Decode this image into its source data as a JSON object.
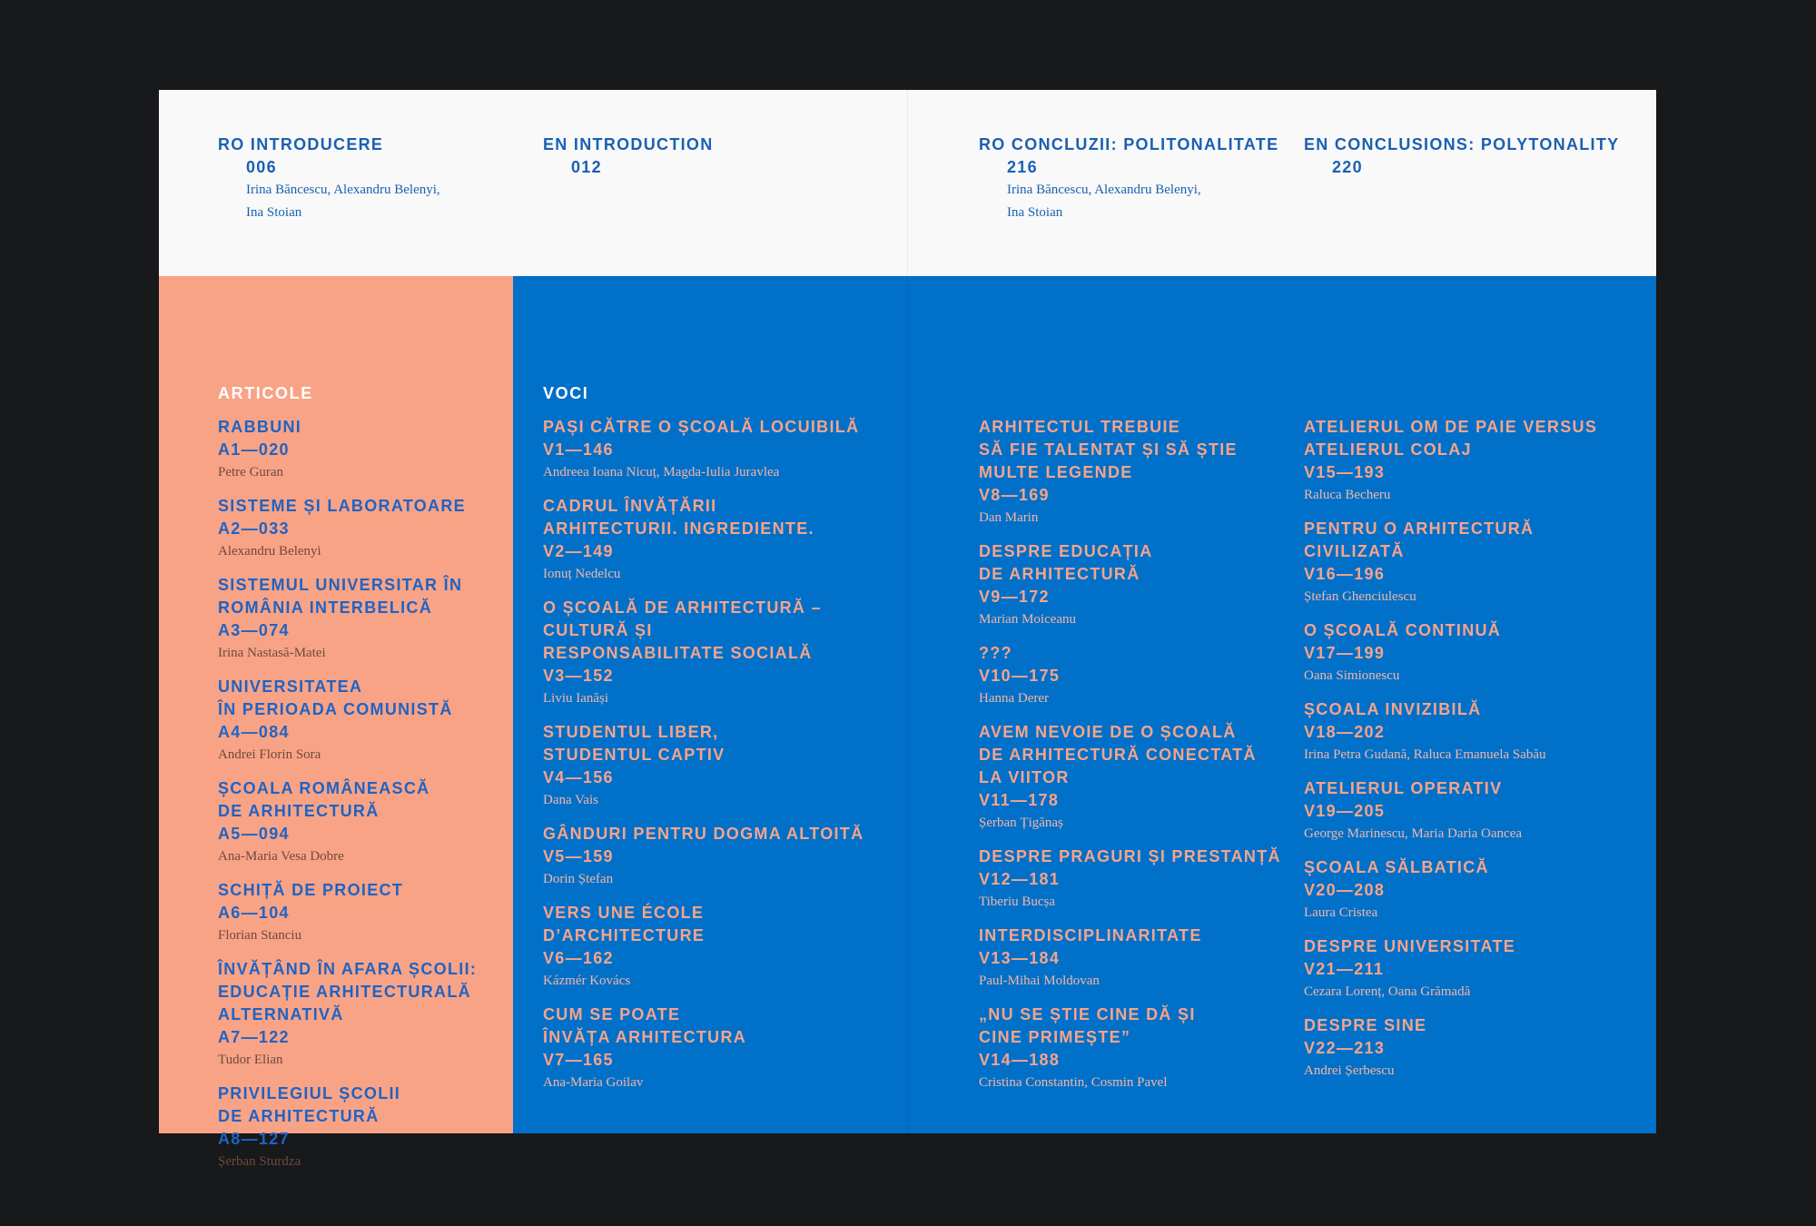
{
  "intro": [
    {
      "lang": "RO",
      "title": "INTRODUCERE",
      "page": "006",
      "authors": [
        "Irina Băncescu, Alexandru Belenyi,",
        "Ina Stoian"
      ]
    },
    {
      "lang": "EN",
      "title": "INTRODUCTION",
      "page": "012",
      "authors": []
    },
    {
      "lang": "RO",
      "title": "CONCLUZII: POLITONALITATE",
      "page": "216",
      "authors": [
        "Irina Băncescu, Alexandru Belenyi,",
        "Ina Stoian"
      ]
    },
    {
      "lang": "EN",
      "title": "CONCLUSIONS: POLYTONALITY",
      "page": "220",
      "authors": []
    }
  ],
  "articole": {
    "heading": "ARTICOLE",
    "items": [
      {
        "title": [
          "RABBUNI"
        ],
        "ref": "A1—020",
        "authors": "Petre Guran"
      },
      {
        "title": [
          "SISTEME ȘI LABORATOARE"
        ],
        "ref": "A2—033",
        "authors": "Alexandru Belenyi"
      },
      {
        "title": [
          "SISTEMUL UNIVERSITAR ÎN",
          "ROMÂNIA INTERBELICĂ"
        ],
        "ref": "A3—074",
        "authors": "Irina Nastasă-Matei"
      },
      {
        "title": [
          "UNIVERSITATEA",
          "ÎN PERIOADA COMUNISTĂ"
        ],
        "ref": "A4—084",
        "authors": "Andrei Florin Sora"
      },
      {
        "title": [
          "ȘCOALA ROMÂNEASCĂ",
          "DE ARHITECTURĂ"
        ],
        "ref": "A5—094",
        "authors": "Ana-Maria Vesa Dobre"
      },
      {
        "title": [
          "SCHIȚĂ DE PROIECT"
        ],
        "ref": "A6—104",
        "authors": "Florian Stanciu"
      },
      {
        "title": [
          "ÎNVĂȚÂND ÎN AFARA ȘCOLII:",
          "EDUCAȚIE ARHITECTURALĂ",
          "ALTERNATIVĂ"
        ],
        "ref": "A7—122",
        "authors": "Tudor Elian"
      },
      {
        "title": [
          "PRIVILEGIUL ȘCOLII",
          "DE ARHITECTURĂ"
        ],
        "ref": "A8—127",
        "authors": "Șerban Sturdza"
      }
    ]
  },
  "voci": {
    "heading": "VOCI",
    "columns": [
      [
        {
          "title": [
            "PAȘI CĂTRE O ȘCOALĂ LOCUIBILĂ"
          ],
          "ref": "V1—146",
          "authors": "Andreea Ioana Nicuț, Magda-Iulia Juravlea"
        },
        {
          "title": [
            "CADRUL ÎNVĂȚĂRII",
            "ARHITECTURII. INGREDIENTE."
          ],
          "ref": "V2—149",
          "authors": "Ionuț Nedelcu"
        },
        {
          "title": [
            "O ȘCOALĂ DE ARHITECTURĂ –",
            "CULTURĂ ȘI",
            "RESPONSABILITATE SOCIALĂ"
          ],
          "ref": "V3—152",
          "authors": "Liviu Ianăși"
        },
        {
          "title": [
            "STUDENTUL LIBER,",
            "STUDENTUL CAPTIV"
          ],
          "ref": "V4—156",
          "authors": "Dana Vais"
        },
        {
          "title": [
            "GÂNDURI PENTRU DOGMA ALTOITĂ"
          ],
          "ref": "V5—159",
          "authors": "Dorin Ștefan"
        },
        {
          "title": [
            "VERS UNE ÉCOLE",
            "D’ARCHITECTURE"
          ],
          "ref": "V6—162",
          "authors": "Kázmér Kovács"
        },
        {
          "title": [
            "CUM SE POATE",
            "ÎNVĂȚA ARHITECTURA"
          ],
          "ref": "V7—165",
          "authors": "Ana-Maria Goilav"
        }
      ],
      [
        {
          "title": [
            "ARHITECTUL TREBUIE",
            "SĂ FIE TALENTAT ȘI SĂ ȘTIE",
            "MULTE LEGENDE"
          ],
          "ref": "V8—169",
          "authors": "Dan Marin"
        },
        {
          "title": [
            "DESPRE EDUCAȚIA",
            "DE ARHITECTURĂ"
          ],
          "ref": "V9—172",
          "authors": "Marian Moiceanu"
        },
        {
          "title": [
            "???"
          ],
          "ref": "V10—175",
          "authors": "Hanna Derer"
        },
        {
          "title": [
            "AVEM NEVOIE DE O ȘCOALĂ",
            "DE ARHITECTURĂ CONECTATĂ",
            "LA VIITOR"
          ],
          "ref": "V11—178",
          "authors": "Șerban Țigănaș"
        },
        {
          "title": [
            "DESPRE PRAGURI ȘI PRESTANȚĂ"
          ],
          "ref": "V12—181",
          "authors": "Tiberiu Bucșa"
        },
        {
          "title": [
            "INTERDISCIPLINARITATE"
          ],
          "ref": "V13—184",
          "authors": "Paul-Mihai Moldovan"
        },
        {
          "title": [
            "„NU SE ȘTIE CINE DĂ ȘI",
            "CINE PRIMEȘTE”"
          ],
          "ref": "V14—188",
          "authors": "Cristina Constantin, Cosmin Pavel"
        }
      ],
      [
        {
          "title": [
            "ATELIERUL OM DE PAIE VERSUS",
            "ATELIERUL COLAJ"
          ],
          "ref": "V15—193",
          "authors": "Raluca Becheru"
        },
        {
          "title": [
            "PENTRU O ARHITECTURĂ",
            "CIVILIZATĂ"
          ],
          "ref": "V16—196",
          "authors": "Ștefan Ghenciulescu"
        },
        {
          "title": [
            "O ȘCOALĂ CONTINUĂ"
          ],
          "ref": "V17—199",
          "authors": "Oana Simionescu"
        },
        {
          "title": [
            "ȘCOALA INVIZIBILĂ"
          ],
          "ref": "V18—202",
          "authors": "Irina Petra Gudană, Raluca Emanuela Sabău"
        },
        {
          "title": [
            "ATELIERUL OPERATIV"
          ],
          "ref": "V19—205",
          "authors": "George Marinescu, Maria Daria Oancea"
        },
        {
          "title": [
            "ȘCOALA SĂLBATICĂ"
          ],
          "ref": "V20—208",
          "authors": "Laura Cristea"
        },
        {
          "title": [
            "DESPRE UNIVERSITATE"
          ],
          "ref": "V21—211",
          "authors": "Cezara Lorenț, Oana Grămadă"
        },
        {
          "title": [
            "DESPRE SINE"
          ],
          "ref": "V22—213",
          "authors": "Andrei Șerbescu"
        }
      ]
    ]
  }
}
